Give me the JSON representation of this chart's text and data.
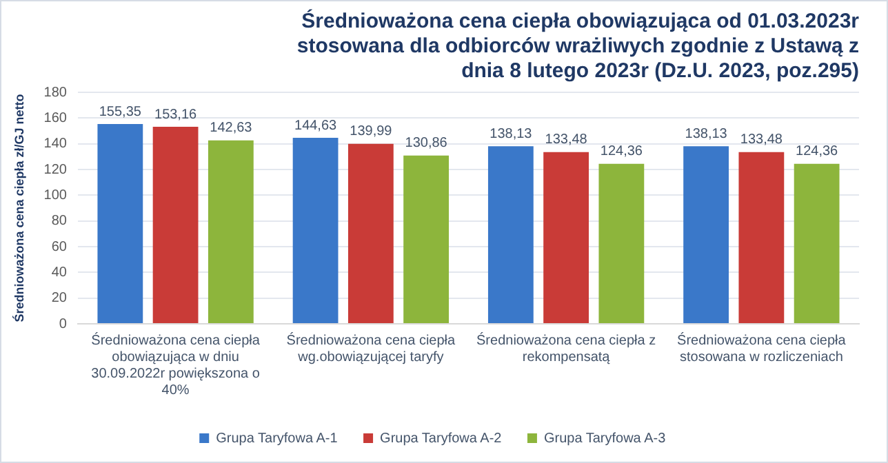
{
  "chart_data": {
    "type": "bar",
    "title": "Średnioważona cena ciepła obowiązująca od 01.03.2023r stosowana dla odbiorców wrażliwych zgodnie z Ustawą z dnia 8 lutego 2023r (Dz.U. 2023, poz.295)",
    "ylabel": "Średnioważona cena ciepła zł/GJ netto",
    "categories": [
      "Średnioważona cena ciepła obowiązująca w dniu 30.09.2022r powiększona o 40%",
      "Średnioważona cena ciepła wg.obowiązującej taryfy",
      "Średnioważona cena ciepła z rekompensatą",
      "Średnioważona cena ciepła stosowana w rozliczeniach"
    ],
    "series": [
      {
        "name": "Grupa Taryfowa A-1",
        "color": "#3a78c9",
        "values": [
          155.35,
          144.63,
          138.13,
          138.13
        ],
        "value_labels": [
          "155,35",
          "144,63",
          "138,13",
          "138,13"
        ]
      },
      {
        "name": "Grupa Taryfowa A-2",
        "color": "#c93b37",
        "values": [
          153.16,
          139.99,
          133.48,
          133.48
        ],
        "value_labels": [
          "153,16",
          "139,99",
          "133,48",
          "133,48"
        ]
      },
      {
        "name": "Grupa Taryfowa A-3",
        "color": "#8db53c",
        "values": [
          142.63,
          130.86,
          124.36,
          124.36
        ],
        "value_labels": [
          "142,63",
          "130,86",
          "124,36",
          "124,36"
        ]
      }
    ],
    "ylim": [
      0,
      180
    ],
    "yticks": [
      0,
      20,
      40,
      60,
      80,
      100,
      120,
      140,
      160,
      180
    ],
    "grid": "y",
    "legend": "bottom"
  }
}
